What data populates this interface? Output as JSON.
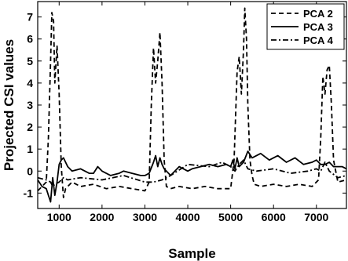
{
  "chart_data": {
    "type": "line",
    "title": "",
    "xlabel": "Sample",
    "ylabel": "Projected CSI values",
    "xlim": [
      500,
      7700
    ],
    "ylim": [
      -1.7,
      7.7
    ],
    "xticks": [
      1000,
      2000,
      3000,
      4000,
      5000,
      6000,
      7000
    ],
    "yticks": [
      -1,
      0,
      1,
      2,
      3,
      4,
      5,
      6,
      7
    ],
    "grid": false,
    "legend_position": "top-right",
    "series": [
      {
        "name": "PCA 2",
        "dash": "dashed",
        "x": [
          500,
          700,
          750,
          800,
          830,
          870,
          900,
          950,
          1000,
          1050,
          1100,
          1150,
          1300,
          1500,
          1800,
          2100,
          2400,
          2700,
          3000,
          3100,
          3150,
          3200,
          3250,
          3300,
          3350,
          3400,
          3450,
          3500,
          3600,
          3800,
          4100,
          4400,
          4700,
          5000,
          5080,
          5150,
          5200,
          5250,
          5300,
          5330,
          5370,
          5400,
          5450,
          5500,
          5550,
          5700,
          6000,
          6300,
          6600,
          6900,
          7050,
          7100,
          7150,
          7200,
          7250,
          7300,
          7350,
          7400,
          7500,
          7700
        ],
        "y": [
          -0.9,
          -0.5,
          1.5,
          5.0,
          7.2,
          6.8,
          4.0,
          5.7,
          3.5,
          0.2,
          -1.2,
          -0.8,
          -0.5,
          -0.7,
          -0.6,
          -0.8,
          -0.7,
          -0.8,
          -0.9,
          -0.5,
          3.0,
          5.6,
          4.0,
          5.0,
          6.3,
          4.0,
          0.5,
          -0.7,
          -0.8,
          -0.7,
          -0.8,
          -0.7,
          -0.8,
          -0.8,
          0.5,
          4.5,
          5.2,
          3.5,
          5.5,
          7.4,
          6.0,
          3.0,
          0.5,
          -0.2,
          -0.6,
          -0.7,
          -0.6,
          -0.7,
          -0.6,
          -0.7,
          -0.4,
          1.5,
          4.3,
          3.5,
          4.6,
          4.8,
          3.0,
          0.5,
          -0.5,
          -0.4
        ]
      },
      {
        "name": "PCA 3",
        "dash": "solid",
        "x": [
          500,
          600,
          700,
          750,
          800,
          850,
          900,
          950,
          1000,
          1050,
          1100,
          1200,
          1300,
          1500,
          1700,
          1800,
          1900,
          2000,
          2200,
          2400,
          2500,
          2700,
          2900,
          3000,
          3100,
          3200,
          3250,
          3300,
          3350,
          3400,
          3450,
          3500,
          3600,
          3800,
          4000,
          4100,
          4300,
          4500,
          4700,
          4900,
          5000,
          5050,
          5100,
          5150,
          5200,
          5300,
          5400,
          5500,
          5700,
          5900,
          6100,
          6300,
          6500,
          6700,
          6900,
          7000,
          7100,
          7200,
          7300,
          7400,
          7600,
          7700
        ],
        "y": [
          -0.4,
          -0.7,
          -0.8,
          -1.1,
          -1.4,
          -0.3,
          -1.1,
          -0.5,
          0.3,
          0.5,
          0.6,
          0.2,
          0.0,
          0.1,
          -0.1,
          -0.1,
          0.2,
          0.0,
          -0.2,
          -0.1,
          0.0,
          -0.1,
          -0.2,
          -0.2,
          -0.1,
          0.4,
          0.7,
          0.2,
          0.6,
          0.3,
          0.1,
          0.0,
          -0.2,
          0.2,
          0.0,
          0.1,
          0.2,
          0.3,
          0.2,
          0.3,
          0.2,
          0.5,
          0.1,
          0.6,
          0.2,
          0.4,
          0.9,
          0.6,
          0.8,
          0.5,
          0.7,
          0.4,
          0.6,
          0.3,
          0.4,
          0.5,
          0.3,
          0.3,
          0.4,
          0.2,
          0.2,
          0.1
        ]
      },
      {
        "name": "PCA 4",
        "dash": "dashdot",
        "x": [
          500,
          700,
          800,
          850,
          900,
          1000,
          1100,
          1200,
          1500,
          2000,
          2500,
          3000,
          3200,
          3400,
          3600,
          4000,
          4500,
          4800,
          5000,
          5100,
          5200,
          5300,
          5400,
          5600,
          6000,
          6400,
          6800,
          7000,
          7100,
          7200,
          7300,
          7500,
          7700
        ],
        "y": [
          -0.3,
          -0.4,
          -0.5,
          -0.7,
          -0.6,
          -0.5,
          -0.3,
          -0.4,
          -0.3,
          -0.4,
          -0.2,
          -0.5,
          -0.5,
          -0.4,
          -0.2,
          0.3,
          0.2,
          0.4,
          0.2,
          0.0,
          0.3,
          0.5,
          0.1,
          0.0,
          0.1,
          -0.1,
          0.0,
          0.1,
          0.0,
          0.4,
          0.0,
          -0.3,
          -0.2
        ]
      }
    ]
  }
}
